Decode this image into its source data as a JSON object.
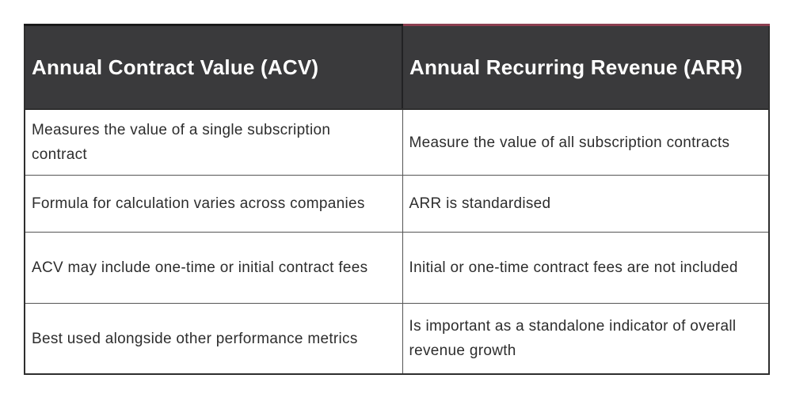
{
  "table": {
    "columns": [
      {
        "header": "Annual Contract Value (ACV)"
      },
      {
        "header": "Annual Recurring Revenue (ARR)"
      }
    ],
    "rows": [
      {
        "acv": "Measures the value of a single subscription contract",
        "arr": "Measure the value of all subscription contracts"
      },
      {
        "acv": "Formula for calculation varies across companies",
        "arr": "ARR is standardised"
      },
      {
        "acv": "ACV may include one-time or initial contract fees",
        "arr": "Initial or one-time contract fees are not included"
      },
      {
        "acv": "Best used alongside other performance metrics",
        "arr": "Is important as a standalone indicator of overall revenue growth"
      }
    ],
    "colors": {
      "header_background": "#3a3a3c",
      "header_text": "#ffffff",
      "body_text": "#2d2d2d",
      "grid_line": "#555555",
      "outer_border": "#2e2e2e",
      "acv_header_top_border": "#1a1a1a",
      "arr_header_top_border": "#8c3f50",
      "page_background": "#ffffff"
    }
  }
}
